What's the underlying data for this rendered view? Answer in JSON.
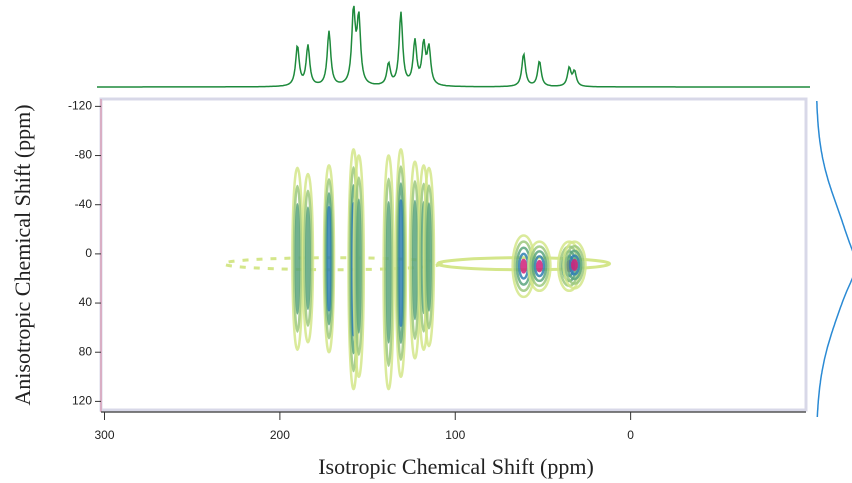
{
  "chart_data": {
    "type": "contour",
    "xlabel": "Isotropic Chemical Shift (ppm)",
    "ylabel": "Anisotropic Chemical Shift (ppm)",
    "xlim": [
      302,
      -100
    ],
    "ylim": [
      -126,
      127
    ],
    "xticks": [
      300,
      200,
      100,
      0
    ],
    "yticks": [
      -120,
      -80,
      -40,
      0,
      40,
      80,
      120
    ],
    "peaks": [
      {
        "x": 190,
        "y_lo": -70,
        "y_hi": 78,
        "height": 0.55,
        "intensity": 3
      },
      {
        "x": 184,
        "y_lo": -65,
        "y_hi": 72,
        "height": 0.55,
        "intensity": 3
      },
      {
        "x": 172,
        "y_lo": -72,
        "y_hi": 80,
        "height": 0.75,
        "intensity": 4
      },
      {
        "x": 158,
        "y_lo": -85,
        "y_hi": 110,
        "height": 1.0,
        "intensity": 4
      },
      {
        "x": 155,
        "y_lo": -80,
        "y_hi": 100,
        "height": 0.9,
        "intensity": 3
      },
      {
        "x": 138,
        "y_lo": -80,
        "y_hi": 110,
        "height": 0.3,
        "intensity": 3
      },
      {
        "x": 131,
        "y_lo": -85,
        "y_hi": 100,
        "height": 1.0,
        "intensity": 4
      },
      {
        "x": 123,
        "y_lo": -75,
        "y_hi": 85,
        "height": 0.6,
        "intensity": 3
      },
      {
        "x": 118,
        "y_lo": -72,
        "y_hi": 78,
        "height": 0.55,
        "intensity": 3
      },
      {
        "x": 115,
        "y_lo": -70,
        "y_hi": 75,
        "height": 0.5,
        "intensity": 3
      },
      {
        "x": 61,
        "y_lo": -15,
        "y_hi": 35,
        "height": 0.45,
        "intensity": 5
      },
      {
        "x": 52,
        "y_lo": -10,
        "y_hi": 30,
        "height": 0.35,
        "intensity": 5
      },
      {
        "x": 35,
        "y_lo": -10,
        "y_hi": 30,
        "height": 0.25,
        "intensity": 5
      },
      {
        "x": 32,
        "y_lo": -10,
        "y_hi": 28,
        "height": 0.2,
        "intensity": 5
      }
    ],
    "ridges": [
      {
        "x_from": 232,
        "x_to": 108,
        "y": 8
      },
      {
        "x_from": 110,
        "x_to": 12,
        "y": 8
      }
    ],
    "colors": [
      "#d4e68a",
      "#9cc87e",
      "#5aa47c",
      "#2f7fb0",
      "#d0207a"
    ],
    "top_color": "#1e8a3c",
    "side_color": "#2a8ad4"
  }
}
